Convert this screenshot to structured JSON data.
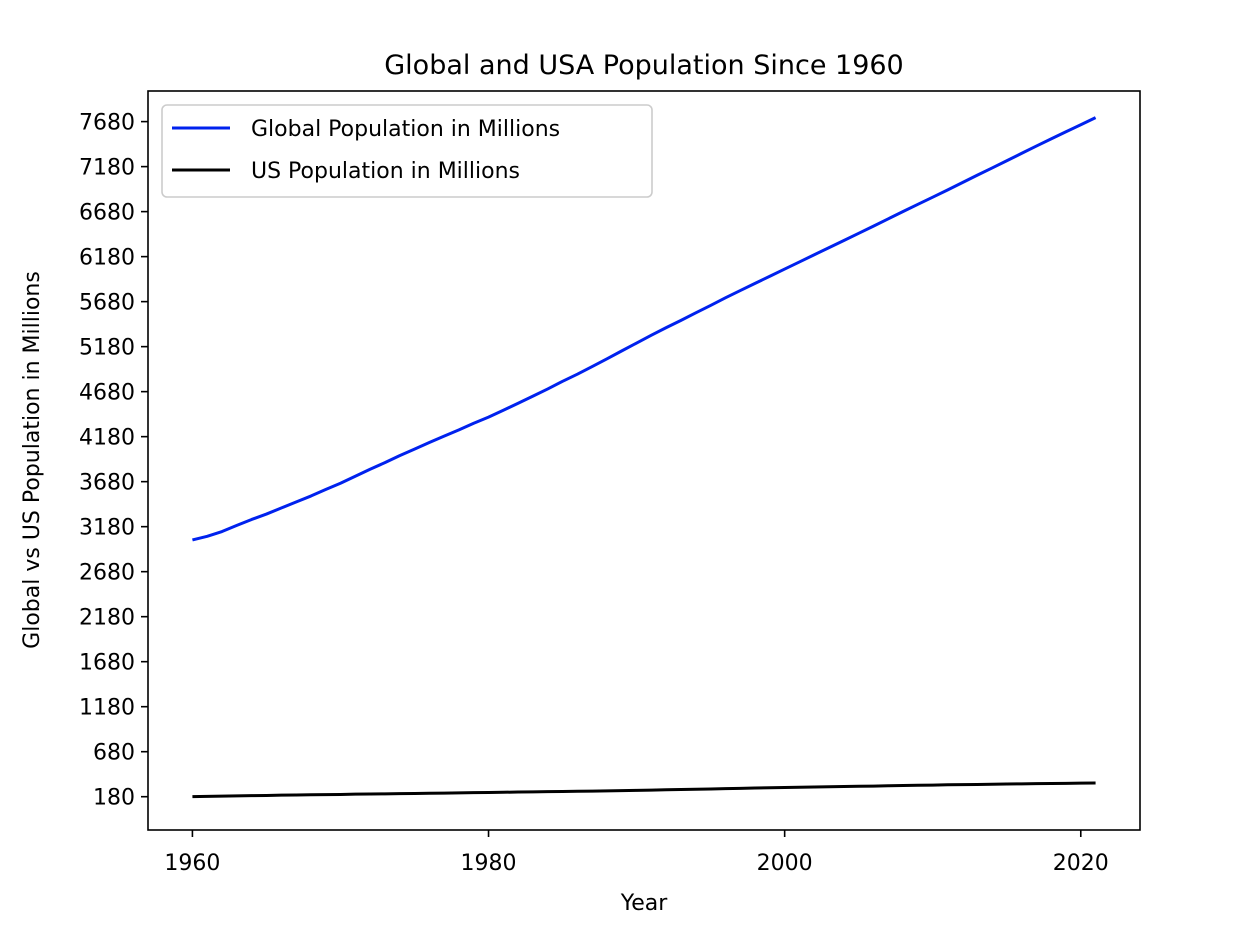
{
  "chart_data": {
    "type": "line",
    "title": "Global and USA Population Since 1960",
    "xlabel": "Year",
    "ylabel": "Global vs US Population in Millions",
    "xlim": [
      1957,
      2024
    ],
    "ylim": [
      -190,
      8020
    ],
    "x_ticks": [
      1960,
      1980,
      2000,
      2020
    ],
    "y_ticks": [
      180,
      680,
      1180,
      1680,
      2180,
      2680,
      3180,
      3680,
      4180,
      4680,
      5180,
      5680,
      6180,
      6680,
      7180,
      7680
    ],
    "grid": false,
    "legend_position": "top-left",
    "x": [
      1960,
      1961,
      1962,
      1963,
      1964,
      1965,
      1966,
      1967,
      1968,
      1969,
      1970,
      1971,
      1972,
      1973,
      1974,
      1975,
      1976,
      1977,
      1978,
      1979,
      1980,
      1981,
      1982,
      1983,
      1984,
      1985,
      1986,
      1987,
      1988,
      1989,
      1990,
      1991,
      1992,
      1993,
      1994,
      1995,
      1996,
      1997,
      1998,
      1999,
      2000,
      2001,
      2002,
      2003,
      2004,
      2005,
      2006,
      2007,
      2008,
      2009,
      2010,
      2011,
      2012,
      2013,
      2014,
      2015,
      2016,
      2017,
      2018,
      2019,
      2020,
      2021
    ],
    "series": [
      {
        "name": "Global Population in Millions",
        "color": "#0022ee",
        "values": [
          3032,
          3073,
          3126,
          3194,
          3260,
          3320,
          3387,
          3454,
          3520,
          3593,
          3662,
          3740,
          3818,
          3891,
          3969,
          4041,
          4115,
          4186,
          4255,
          4329,
          4397,
          4473,
          4551,
          4630,
          4710,
          4795,
          4874,
          4959,
          5045,
          5133,
          5220,
          5307,
          5391,
          5472,
          5556,
          5638,
          5722,
          5803,
          5883,
          5962,
          6042,
          6121,
          6201,
          6280,
          6359,
          6439,
          6519,
          6600,
          6681,
          6761,
          6840,
          6920,
          7002,
          7084,
          7164,
          7245,
          7327,
          7408,
          7488,
          7567,
          7645,
          7724
        ]
      },
      {
        "name": "US Population in Millions",
        "color": "#000000",
        "values": [
          181,
          184,
          187,
          189,
          192,
          194,
          197,
          199,
          201,
          203,
          205,
          208,
          210,
          212,
          214,
          216,
          218,
          220,
          223,
          225,
          227,
          229,
          232,
          234,
          236,
          238,
          240,
          242,
          245,
          247,
          250,
          253,
          257,
          260,
          263,
          266,
          270,
          273,
          276,
          279,
          282,
          285,
          288,
          290,
          293,
          296,
          298,
          301,
          304,
          307,
          309,
          312,
          314,
          316,
          318,
          321,
          323,
          325,
          327,
          328,
          331,
          332
        ]
      }
    ]
  }
}
